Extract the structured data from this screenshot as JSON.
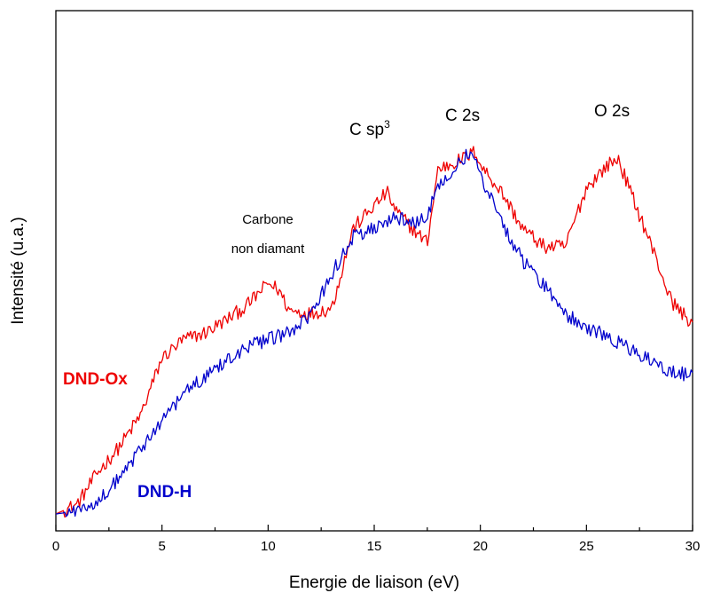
{
  "chart_data": {
    "type": "line",
    "xlabel": "Energie de liaison (eV)",
    "ylabel": "Intensité (u.a.)",
    "xlim": [
      0,
      30
    ],
    "ylim": [
      0,
      100
    ],
    "x_ticks": [
      0,
      5,
      10,
      15,
      20,
      25,
      30
    ],
    "x_tick_labels": [
      "0",
      "5",
      "10",
      "15",
      "20",
      "25",
      "30"
    ],
    "y_ticks_shown": false,
    "grid": false,
    "series": [
      {
        "name": "DND-Ox",
        "color": "#ee0000",
        "x": [
          0,
          1,
          2,
          3,
          4,
          5,
          6,
          7,
          8,
          9,
          10,
          10.5,
          11,
          12,
          13,
          14,
          15,
          15.6,
          16,
          17,
          17.5,
          18,
          19,
          19.8,
          20,
          21,
          22,
          23,
          24,
          25,
          26,
          26.5,
          27,
          28,
          29,
          30
        ],
        "values": [
          0.2,
          2.3,
          9.5,
          15,
          22,
          34.5,
          38.5,
          40,
          42.8,
          46,
          51,
          49.5,
          45,
          44.3,
          45.5,
          63,
          68,
          71,
          67,
          62,
          60,
          76,
          78,
          80,
          77,
          71,
          63,
          59,
          59,
          72,
          77,
          78.3,
          72,
          60,
          47,
          42
        ]
      },
      {
        "name": "DND-H",
        "color": "#0000cc",
        "x": [
          0,
          1,
          2,
          3,
          4,
          5,
          6,
          7,
          8,
          9,
          10,
          11,
          12,
          13,
          14,
          15,
          16,
          17,
          17.5,
          18,
          19,
          19.5,
          20,
          21,
          22,
          23,
          24,
          25,
          26,
          27,
          28,
          29,
          30
        ],
        "values": [
          0.2,
          0.8,
          3.2,
          8,
          14.3,
          21,
          26.5,
          30.5,
          34,
          37,
          38.5,
          40,
          43.5,
          53,
          61.3,
          63,
          65.3,
          64,
          66,
          72,
          78,
          79.5,
          75,
          64.5,
          56,
          50.5,
          44.3,
          41.3,
          39.5,
          36.5,
          34,
          31.5,
          30.5
        ]
      }
    ],
    "annotations": {
      "carbone_line1": "Carbone",
      "carbone_line2": "non diamant",
      "csp3_base": "C sp",
      "csp3_sup": "3",
      "c2s": "C 2s",
      "o2s": "O 2s"
    }
  }
}
